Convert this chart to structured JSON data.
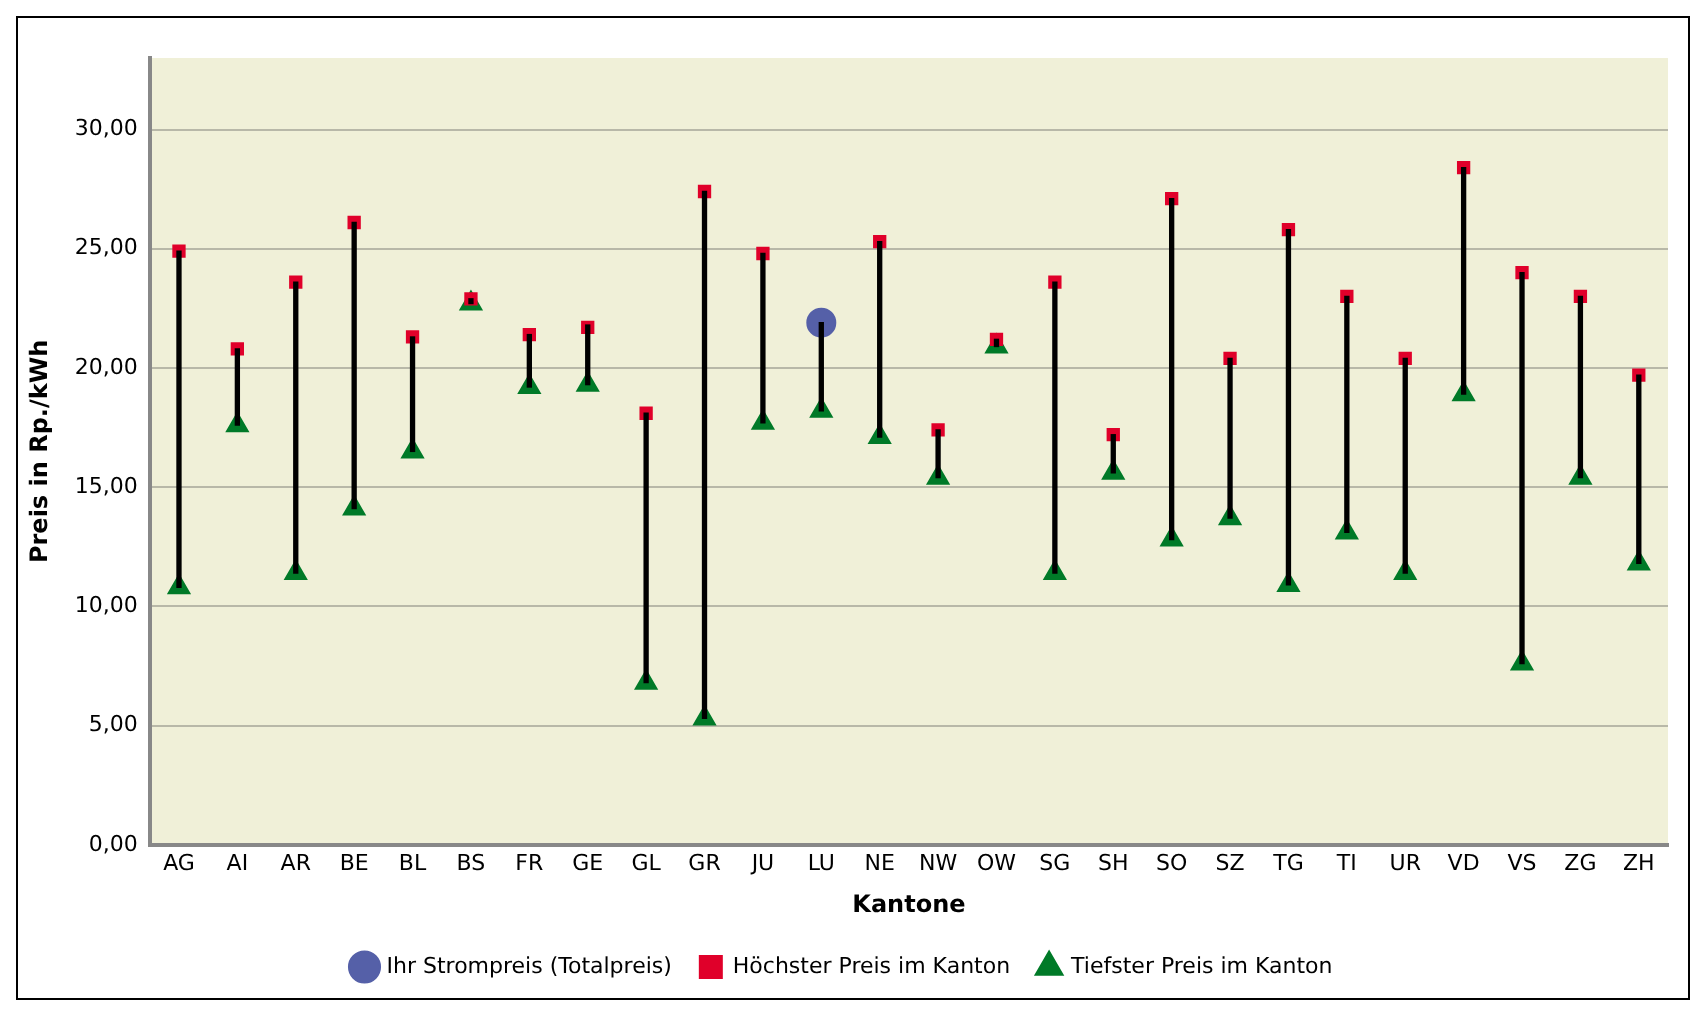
{
  "chart_data": {
    "type": "scatter",
    "xlabel": "Kantone",
    "ylabel": "Preis in Rp./kWh",
    "categories": [
      "AG",
      "AI",
      "AR",
      "BE",
      "BL",
      "BS",
      "FR",
      "GE",
      "GL",
      "GR",
      "JU",
      "LU",
      "NE",
      "NW",
      "OW",
      "SG",
      "SH",
      "SO",
      "SZ",
      "TG",
      "TI",
      "UR",
      "VD",
      "VS",
      "ZG",
      "ZH"
    ],
    "series": [
      {
        "type": "bar",
        "color": "#000000",
        "base": [
          10.8,
          17.6,
          11.4,
          14.1,
          16.5,
          22.7,
          19.2,
          19.3,
          6.8,
          5.3,
          17.7,
          18.2,
          17.1,
          15.4,
          20.9,
          11.4,
          15.6,
          12.8,
          13.7,
          10.9,
          13.1,
          11.4,
          18.9,
          7.6,
          15.4,
          11.8
        ],
        "values": [
          14.1,
          3.2,
          12.2,
          12.0,
          4.8,
          0.2,
          2.2,
          2.5,
          11.3,
          22.1,
          7.1,
          3.7,
          8.2,
          2.0,
          0.3,
          12.2,
          1.6,
          14.3,
          6.7,
          14.9,
          9.9,
          9.0,
          9.5,
          16.4,
          7.6,
          7.9
        ]
      },
      {
        "name": "Tiefster Preis im Kanton",
        "marker": "triangle",
        "color": "#007a28",
        "values": [
          10.8,
          17.6,
          11.4,
          14.1,
          16.5,
          22.7,
          19.2,
          19.3,
          6.8,
          5.3,
          17.7,
          18.2,
          17.1,
          15.4,
          20.9,
          11.4,
          15.6,
          12.8,
          13.7,
          10.9,
          13.1,
          11.4,
          18.9,
          7.6,
          15.4,
          11.8
        ]
      },
      {
        "name": "Höchster Preis im Kanton",
        "marker": "square",
        "color": "#e0002a",
        "values": [
          24.9,
          20.8,
          23.6,
          26.1,
          21.3,
          22.9,
          21.4,
          21.7,
          18.1,
          27.4,
          24.8,
          null,
          25.3,
          17.4,
          21.2,
          23.6,
          17.2,
          27.1,
          20.4,
          25.8,
          23.0,
          20.4,
          28.4,
          24.0,
          23.0,
          19.7
        ]
      },
      {
        "name": "Ihr Strompreis (Totalpreis)",
        "marker": "circle",
        "color": "#5560a8",
        "values": [
          null,
          null,
          null,
          null,
          null,
          null,
          null,
          null,
          null,
          null,
          null,
          21.9,
          null,
          null,
          null,
          null,
          null,
          null,
          null,
          null,
          null,
          null,
          null,
          null,
          null,
          null
        ]
      }
    ],
    "ylim": [
      0,
      33
    ],
    "yticks": [
      {
        "value": 0,
        "label": "0,00"
      },
      {
        "value": 5,
        "label": "5,00"
      },
      {
        "value": 10,
        "label": "10,00"
      },
      {
        "value": 15,
        "label": "15,00"
      },
      {
        "value": 20,
        "label": "20,00"
      },
      {
        "value": 25,
        "label": "25,00"
      },
      {
        "value": 30,
        "label": "30,00"
      }
    ],
    "grid": "y",
    "legend": "bottom"
  }
}
